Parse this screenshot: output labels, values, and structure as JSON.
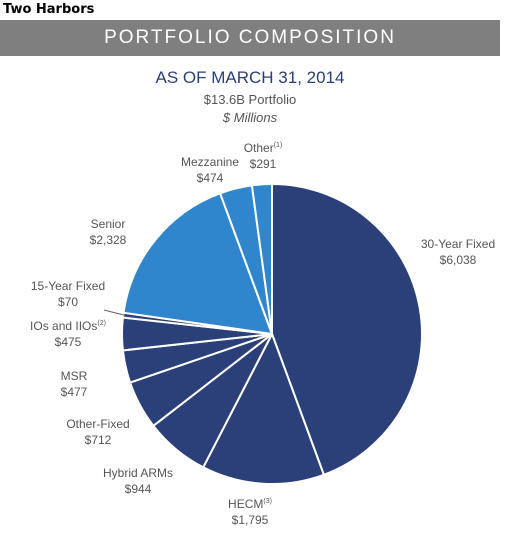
{
  "header": {
    "company": "Two Harbors",
    "banner": "PORTFOLIO COMPOSITION",
    "as_of": "AS OF MARCH 31, 2014",
    "portfolio": "$13.6B Portfolio",
    "units": "$ Millions"
  },
  "chart_data": {
    "type": "pie",
    "title": "PORTFOLIO COMPOSITION",
    "subtitle": "AS OF MARCH 31, 2014",
    "units": "$ Millions",
    "start_angle": "top",
    "direction": "clockwise",
    "slices": [
      {
        "label": "30-Year Fixed",
        "sup": "",
        "value": 6038,
        "value_label": "$6,038",
        "color": "#2b3f78"
      },
      {
        "label": "HECM",
        "sup": "(3)",
        "value": 1795,
        "value_label": "$1,795",
        "color": "#2b3f78"
      },
      {
        "label": "Hybrid ARMs",
        "sup": "",
        "value": 944,
        "value_label": "$944",
        "color": "#2b3f78"
      },
      {
        "label": "Other-Fixed",
        "sup": "",
        "value": 712,
        "value_label": "$712",
        "color": "#2b3f78"
      },
      {
        "label": "MSR",
        "sup": "",
        "value": 477,
        "value_label": "$477",
        "color": "#2b3f78"
      },
      {
        "label": "IOs and IIOs",
        "sup": "(2)",
        "value": 475,
        "value_label": "$475",
        "color": "#2b3f78"
      },
      {
        "label": "15-Year Fixed",
        "sup": "",
        "value": 70,
        "value_label": "$70",
        "color": "#2b3f78"
      },
      {
        "label": "Senior",
        "sup": "",
        "value": 2328,
        "value_label": "$2,328",
        "color": "#2f86cc"
      },
      {
        "label": "Mezzanine",
        "sup": "",
        "value": 474,
        "value_label": "$474",
        "color": "#2f86cc"
      },
      {
        "label": "Other",
        "sup": "(1)",
        "value": 291,
        "value_label": "$291",
        "color": "#2f86cc"
      }
    ]
  }
}
